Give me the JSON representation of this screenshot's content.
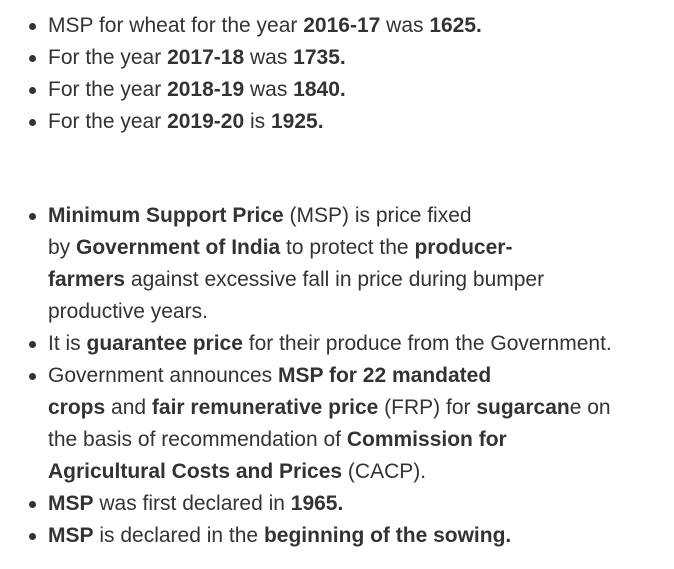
{
  "list_1": [
    {
      "parts": [
        "MSP for wheat for the year ",
        "2016-17",
        " was ",
        "1625."
      ]
    },
    {
      "parts": [
        "For the year ",
        "2017-18",
        " was ",
        "1735."
      ]
    },
    {
      "parts": [
        "For the year ",
        "2018-19",
        " was ",
        "1840."
      ]
    },
    {
      "parts": [
        "For the year ",
        "2019-20",
        " is ",
        "1925."
      ]
    }
  ],
  "list_2": {
    "item_1": {
      "line_1": [
        "Minimum Support Price",
        " (MSP) is price fixed"
      ],
      "line_2": [
        "by ",
        "Government of India",
        " to protect the ",
        "producer-"
      ],
      "line_3": [
        "farmers",
        " against excessive fall in price during bumper"
      ],
      "line_4": [
        "productive years."
      ]
    },
    "item_2": {
      "line_1": [
        "It is ",
        "guarantee price",
        " for their produce from the Government."
      ]
    },
    "item_3": {
      "line_1": [
        "Government announces ",
        "MSP for 22 mandated"
      ],
      "line_2": [
        "crops",
        " and ",
        "fair remunerative price",
        " (FRP) for ",
        "sugarcan",
        "e on"
      ],
      "line_3": [
        "the basis of recommendation of ",
        "Commission for"
      ],
      "line_4": [
        "Agricultural Costs and Prices",
        " (CACP)."
      ]
    },
    "item_4": {
      "line_1": [
        "MSP",
        " was first declared in ",
        "1965."
      ]
    },
    "item_5": {
      "line_1": [
        "MSP",
        " is declared in the ",
        "beginning of the sowing."
      ]
    }
  }
}
